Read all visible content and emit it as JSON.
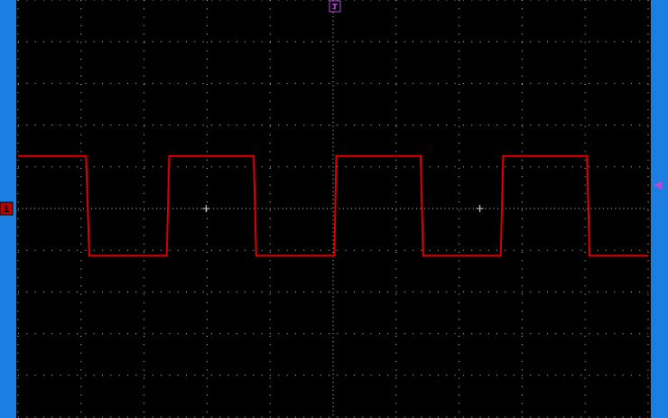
{
  "markers": {
    "channel": "1",
    "trigger": "T"
  },
  "chart_data": {
    "type": "line",
    "x": [
      0,
      1.08,
      1.13,
      2.36,
      2.4,
      3.74,
      3.78,
      5.02,
      5.05,
      6.39,
      6.43,
      7.66,
      7.7,
      9.03,
      9.07,
      10
    ],
    "series": [
      {
        "color": "#e00000",
        "values": [
          1.26,
          1.26,
          -1.13,
          -1.13,
          1.26,
          1.26,
          -1.13,
          -1.13,
          1.26,
          1.26,
          -1.13,
          -1.13,
          1.26,
          1.26,
          -1.13,
          -1.13
        ]
      }
    ],
    "xlim": [
      0,
      10
    ],
    "ylim": [
      -5,
      5
    ],
    "grid": true
  }
}
